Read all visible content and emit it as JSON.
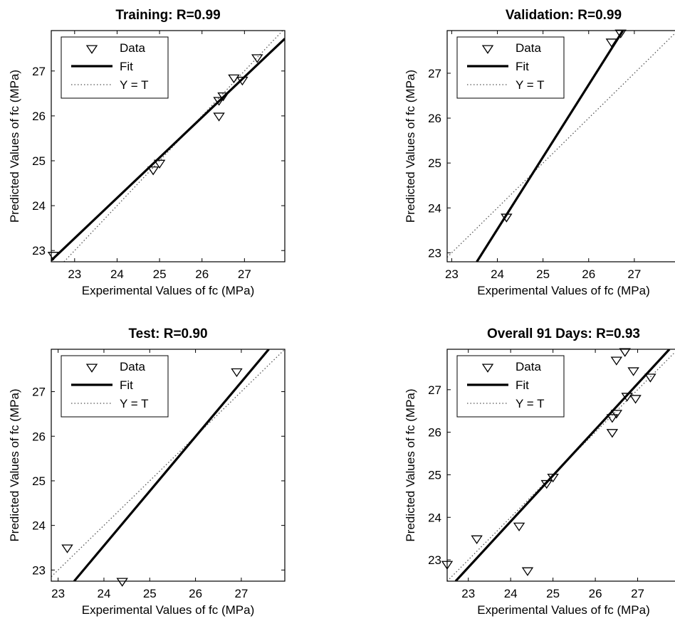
{
  "chart_data": [
    {
      "id": "training",
      "type": "scatter",
      "title": "Training: R=0.99",
      "xlabel": "Experimental Values of fc (MPa)",
      "ylabel": "Predicted Values of fc (MPa)",
      "xlim": [
        22.45,
        27.95
      ],
      "ylim": [
        22.75,
        27.9
      ],
      "xticks": [
        23,
        24,
        25,
        26,
        27
      ],
      "yticks": [
        23,
        24,
        25,
        26,
        27
      ],
      "legend": {
        "position": "top-left",
        "entries": [
          "Data",
          "Fit",
          "Y = T"
        ]
      },
      "points": [
        {
          "x": 22.5,
          "y": 22.9
        },
        {
          "x": 24.85,
          "y": 24.8
        },
        {
          "x": 25.0,
          "y": 24.95
        },
        {
          "x": 26.4,
          "y": 26.0
        },
        {
          "x": 26.4,
          "y": 26.35
        },
        {
          "x": 26.5,
          "y": 26.45
        },
        {
          "x": 26.75,
          "y": 26.85
        },
        {
          "x": 26.95,
          "y": 26.8
        },
        {
          "x": 27.3,
          "y": 27.3
        }
      ],
      "fit": {
        "x": [
          22.45,
          27.95
        ],
        "y": [
          22.78,
          27.72
        ]
      },
      "identity": true
    },
    {
      "id": "validation",
      "type": "scatter",
      "title": "Validation: R=0.99",
      "xlabel": "Experimental Values of fc (MPa)",
      "ylabel": "Predicted Values of fc (MPa)",
      "xlim": [
        22.9,
        28.0
      ],
      "ylim": [
        22.8,
        27.95
      ],
      "xticks": [
        23,
        24,
        25,
        26,
        27
      ],
      "yticks": [
        23,
        24,
        25,
        26,
        27
      ],
      "legend": {
        "position": "top-left",
        "entries": [
          "Data",
          "Fit",
          "Y = T"
        ]
      },
      "points": [
        {
          "x": 24.2,
          "y": 23.8
        },
        {
          "x": 26.5,
          "y": 27.7
        },
        {
          "x": 26.7,
          "y": 27.9
        }
      ],
      "fit": {
        "x": [
          23.55,
          26.75
        ],
        "y": [
          22.8,
          27.95
        ]
      },
      "identity": true
    },
    {
      "id": "test",
      "type": "scatter",
      "title": "Test: R=0.90",
      "xlabel": "Experimental Values of fc (MPa)",
      "ylabel": "Predicted Values of fc (MPa)",
      "xlim": [
        22.85,
        27.95
      ],
      "ylim": [
        22.75,
        27.95
      ],
      "xticks": [
        23,
        24,
        25,
        26,
        27
      ],
      "yticks": [
        23,
        24,
        25,
        26,
        27
      ],
      "legend": {
        "position": "top-left",
        "entries": [
          "Data",
          "Fit",
          "Y = T"
        ]
      },
      "points": [
        {
          "x": 23.2,
          "y": 23.5
        },
        {
          "x": 24.4,
          "y": 22.75
        },
        {
          "x": 26.9,
          "y": 27.45
        }
      ],
      "fit": {
        "x": [
          23.35,
          27.6
        ],
        "y": [
          22.75,
          27.95
        ]
      },
      "identity": true
    },
    {
      "id": "overall",
      "type": "scatter",
      "title": "Overall 91 Days: R=0.93",
      "xlabel": "Experimental Values of fc (MPa)",
      "ylabel": "Predicted Values of fc (MPa)",
      "xlim": [
        22.5,
        28.0
      ],
      "ylim": [
        22.5,
        27.95
      ],
      "xticks": [
        23,
        24,
        25,
        26,
        27
      ],
      "yticks": [
        23,
        24,
        25,
        26,
        27
      ],
      "legend": {
        "position": "top-left",
        "entries": [
          "Data",
          "Fit",
          "Y = T"
        ]
      },
      "points": [
        {
          "x": 22.5,
          "y": 22.9
        },
        {
          "x": 23.2,
          "y": 23.5
        },
        {
          "x": 24.2,
          "y": 23.8
        },
        {
          "x": 24.4,
          "y": 22.75
        },
        {
          "x": 24.85,
          "y": 24.8
        },
        {
          "x": 25.0,
          "y": 24.95
        },
        {
          "x": 26.4,
          "y": 26.0
        },
        {
          "x": 26.4,
          "y": 26.35
        },
        {
          "x": 26.5,
          "y": 26.45
        },
        {
          "x": 26.5,
          "y": 27.7
        },
        {
          "x": 26.7,
          "y": 27.9
        },
        {
          "x": 26.75,
          "y": 26.85
        },
        {
          "x": 26.9,
          "y": 27.45
        },
        {
          "x": 26.95,
          "y": 26.8
        },
        {
          "x": 27.3,
          "y": 27.3
        }
      ],
      "fit": {
        "x": [
          22.7,
          27.75
        ],
        "y": [
          22.5,
          27.95
        ]
      },
      "identity": true
    }
  ]
}
